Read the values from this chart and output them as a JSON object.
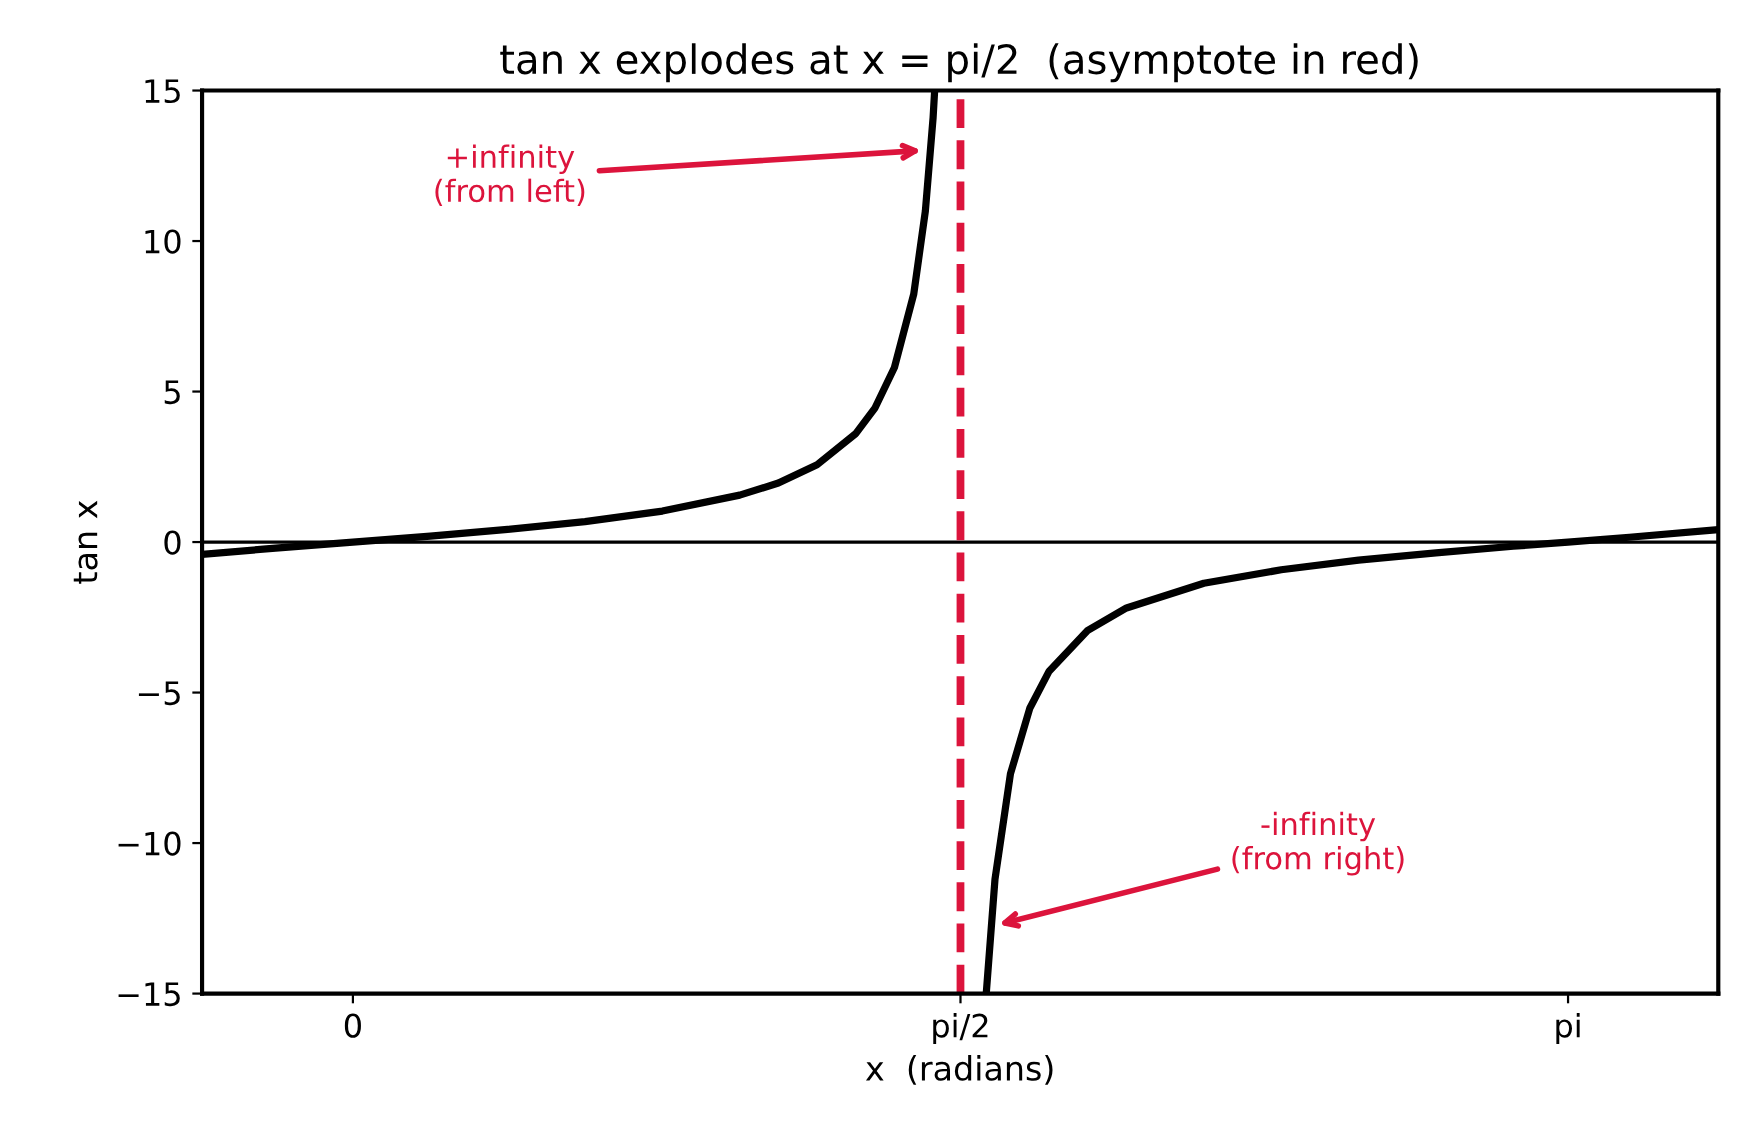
{
  "chart_data": {
    "type": "line",
    "title": "tan x explodes at x = pi/2  (asymptote in red)",
    "xlabel": "x  (radians)",
    "ylabel": "tan x",
    "series": [
      {
        "color": "#000000",
        "x": [
          -0.39,
          -0.2,
          0,
          0.2,
          0.4,
          0.6,
          0.8,
          1.0,
          1.1,
          1.2,
          1.3,
          1.35,
          1.4,
          1.45,
          1.48,
          1.5,
          1.504,
          1.5708,
          1.6374,
          1.66,
          1.7,
          1.75,
          1.8,
          1.9,
          2.0,
          2.2,
          2.4,
          2.6,
          2.8,
          3.0,
          3.1416,
          3.3,
          3.53
        ],
        "values": [
          -0.41,
          -0.2,
          0,
          0.2,
          0.42,
          0.68,
          1.03,
          1.56,
          1.96,
          2.57,
          3.6,
          4.46,
          5.8,
          8.24,
          11.0,
          14.1,
          15.0,
          null,
          -15.0,
          -11.2,
          -7.7,
          -5.52,
          -4.29,
          -2.93,
          -2.19,
          -1.37,
          -0.92,
          -0.6,
          -0.36,
          -0.14,
          0,
          0.16,
          0.41
        ]
      }
    ],
    "xlim": [
      -0.39,
      3.53
    ],
    "ylim": [
      -15,
      15
    ],
    "xticks": [
      0,
      {
        "value": 1.5708,
        "label": "pi/2"
      },
      {
        "value": 3.1416,
        "label": "pi"
      }
    ],
    "yticks": [
      -15,
      -10,
      -5,
      0,
      5,
      10,
      15
    ],
    "ref_lines": [
      {
        "axis": "y",
        "value": 0,
        "color": "#000000",
        "line_style": "solid"
      },
      {
        "axis": "x",
        "value": 1.5708,
        "color": "#dc143c",
        "line_style": "dashed"
      }
    ],
    "annotations": [
      "+infinity\n(from left)",
      "-infinity\n(from right)"
    ],
    "grid": false,
    "legend": false,
    "marker": "none",
    "line_style": "solid"
  }
}
